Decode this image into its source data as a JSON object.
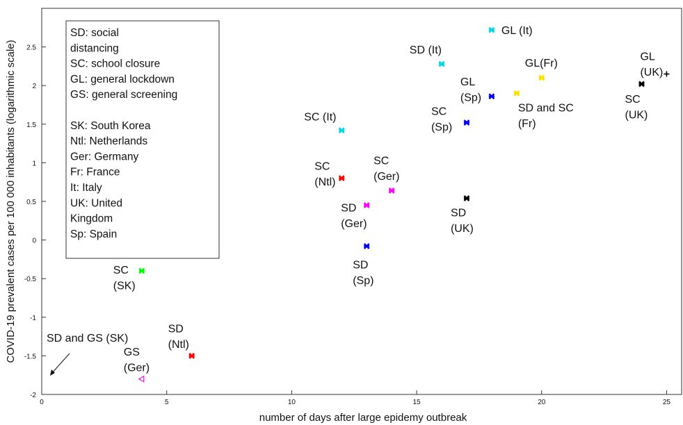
{
  "chart_data": {
    "type": "scatter",
    "xlabel": "number of days after large epidemy outbreak",
    "ylabel": "COVID-19 prevalent cases per 100 000 inhabitants (logarithmic scale)",
    "xlim": [
      0,
      25.6
    ],
    "ylim": [
      -2,
      3
    ],
    "xticks": [
      0,
      5,
      10,
      15,
      20,
      25
    ],
    "yticks": [
      -2,
      -1.5,
      -1,
      -0.5,
      0,
      0.5,
      1,
      1.5,
      2,
      2.5
    ],
    "legend_box": [
      [
        "SD: social",
        "distancing",
        "SC: school closure",
        "GL: general lockdown",
        "GS: general screening"
      ],
      [
        "SK: South Korea",
        "Ntl: Netherlands",
        "Ger: Germany",
        "Fr: France",
        "It: Italy",
        "UK: United",
        "Kingdom",
        "Sp: Spain"
      ]
    ],
    "annotation": "SD and GS (SK)",
    "points": [
      {
        "label": [
          "GL (It)"
        ],
        "x": 18,
        "y": 2.72,
        "color": "#00d8e8",
        "marker": "star"
      },
      {
        "label": [
          "SD (It)"
        ],
        "x": 16,
        "y": 2.28,
        "color": "#00d8e8",
        "marker": "star"
      },
      {
        "label": [
          "GL",
          "(Sp)"
        ],
        "x": 18,
        "y": 1.86,
        "color": "#0000ff",
        "marker": "star"
      },
      {
        "label": [
          "GL(Fr)"
        ],
        "x": 20,
        "y": 2.1,
        "color": "#ffe000",
        "marker": "star"
      },
      {
        "label": [
          "SD and SC",
          "(Fr)"
        ],
        "x": 19,
        "y": 1.9,
        "color": "#ffe000",
        "marker": "star"
      },
      {
        "label": [
          "SC",
          "(Sp)"
        ],
        "x": 17,
        "y": 1.52,
        "color": "#0000ff",
        "marker": "star"
      },
      {
        "label": [
          "GL",
          "(UK)"
        ],
        "x": 25,
        "y": 2.15,
        "color": "#000000",
        "marker": "plus"
      },
      {
        "label": [
          "SC",
          "(UK)"
        ],
        "x": 24,
        "y": 2.02,
        "color": "#000000",
        "marker": "star"
      },
      {
        "label": [
          "SC (It)"
        ],
        "x": 12,
        "y": 1.42,
        "color": "#00d8e8",
        "marker": "star"
      },
      {
        "label": [
          "SC",
          "(Ntl)"
        ],
        "x": 12,
        "y": 0.8,
        "color": "#ff0000",
        "marker": "star"
      },
      {
        "label": [
          "SC",
          "(Ger)"
        ],
        "x": 14,
        "y": 0.64,
        "color": "#ff00ff",
        "marker": "star"
      },
      {
        "label": [
          "SD",
          "(Ger)"
        ],
        "x": 13,
        "y": 0.45,
        "color": "#ff00ff",
        "marker": "star"
      },
      {
        "label": [
          "SD",
          "(UK)"
        ],
        "x": 17,
        "y": 0.54,
        "color": "#000000",
        "marker": "star"
      },
      {
        "label": [
          "SD",
          "(Sp)"
        ],
        "x": 13,
        "y": -0.08,
        "color": "#0000ff",
        "marker": "star"
      },
      {
        "label": [
          "SC",
          "(SK)"
        ],
        "x": 4,
        "y": -0.4,
        "color": "#00ff00",
        "marker": "star"
      },
      {
        "label": [
          "SD",
          "(Ntl)"
        ],
        "x": 6,
        "y": -1.5,
        "color": "#ff0000",
        "marker": "star"
      },
      {
        "label": [
          "GS",
          "(Ger)"
        ],
        "x": 4,
        "y": -1.8,
        "color": "#ff00ff",
        "marker": "triangle"
      }
    ]
  }
}
